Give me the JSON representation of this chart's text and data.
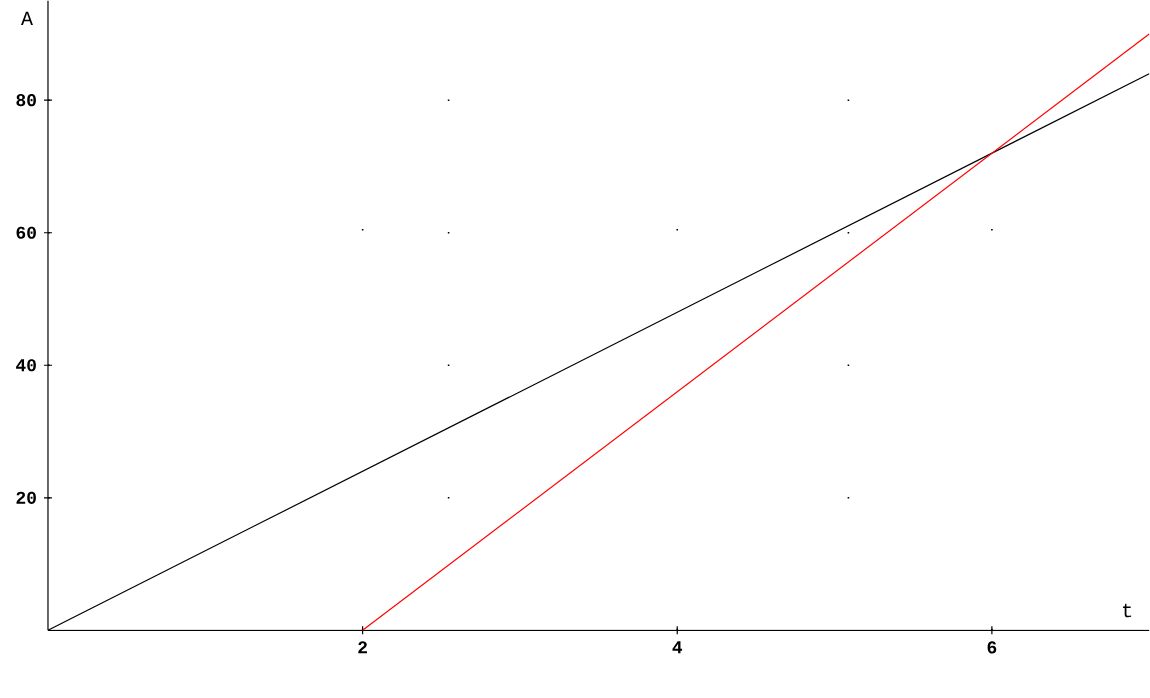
{
  "chart_data": {
    "type": "line",
    "xlabel": "t",
    "ylabel": "A",
    "xlim": [
      0,
      7
    ],
    "ylim": [
      0,
      95
    ],
    "xticks": [
      2,
      4,
      6
    ],
    "yticks": [
      20,
      40,
      60,
      80
    ],
    "grid": true,
    "series": [
      {
        "color": "#000000",
        "x": [
          0,
          7
        ],
        "values": [
          0,
          84
        ]
      },
      {
        "color": "#ff0000",
        "x": [
          2,
          7
        ],
        "values": [
          0,
          90
        ]
      }
    ]
  }
}
